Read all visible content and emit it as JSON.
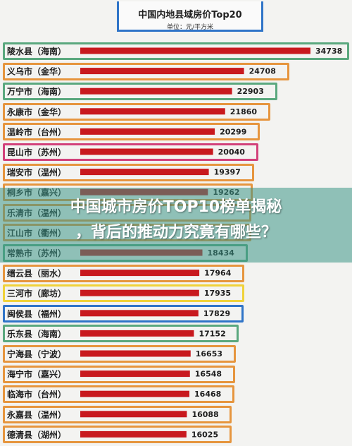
{
  "header": {
    "title": "中国内地县域房价Top20",
    "unit": "单位：元/平方米"
  },
  "overlay": {
    "line1": "中国城市房价TOP10榜单揭秘",
    "line2": "，背后的推动力究竟有哪些？"
  },
  "colors": {
    "bar": "#c8191e",
    "green": "#5aa87e",
    "orange": "#e6953e",
    "pink": "#d2417a",
    "yellow": "#f0d23a",
    "blue": "#2f74c8"
  },
  "chart_data": {
    "type": "bar",
    "orientation": "horizontal",
    "title": "中国内地县域房价Top20",
    "unit": "单位：元/平方米",
    "categories": [
      "陵水县（海南）",
      "义乌市（金华）",
      "万宁市（海南）",
      "永康市（金华）",
      "温岭市（台州）",
      "昆山市（苏州）",
      "瑞安市（温州）",
      "桐乡市（嘉兴）",
      "乐清市（温州）",
      "江山市（衢州）",
      "常熟市（苏州）",
      "缙云县（丽水）",
      "三河市（廊坊）",
      "闽侯县（福州）",
      "乐东县（海南）",
      "宁海县（宁波）",
      "海宁市（嘉兴）",
      "临海市（台州）",
      "永嘉县（温州）",
      "德清县（湖州）"
    ],
    "values": [
      34738,
      24708,
      22903,
      21860,
      20299,
      20040,
      19397,
      19262,
      null,
      null,
      18434,
      17964,
      17935,
      17829,
      17152,
      16653,
      16548,
      16468,
      16088,
      16025
    ],
    "highlight_color": [
      "green",
      "orange",
      "green",
      "orange",
      "orange",
      "pink",
      "orange",
      "orange",
      "orange",
      "orange",
      "green",
      "orange",
      "yellow",
      "blue",
      "green",
      "orange",
      "orange",
      "orange",
      "orange",
      "orange"
    ]
  }
}
